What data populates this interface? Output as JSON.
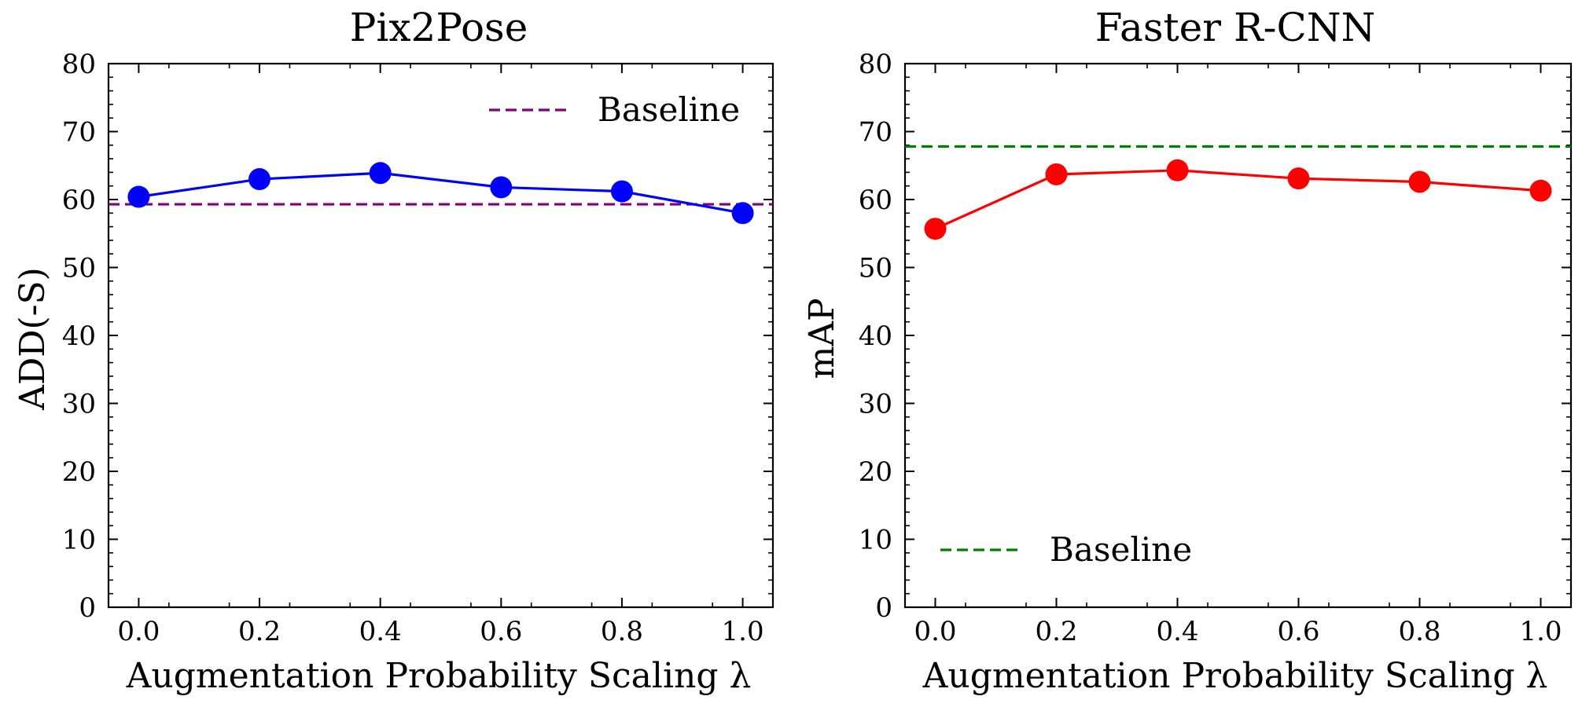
{
  "chart_data": [
    {
      "type": "line",
      "title": "Pix2Pose",
      "xlabel": "Augmentation Probability Scaling λ",
      "ylabel": "ADD(-S)",
      "xlim": [
        -0.05,
        1.05
      ],
      "ylim": [
        0,
        80
      ],
      "x_ticks": [
        "0.0",
        "0.2",
        "0.4",
        "0.6",
        "0.8",
        "1.0"
      ],
      "y_ticks": [
        "0",
        "10",
        "20",
        "30",
        "40",
        "50",
        "60",
        "70",
        "80"
      ],
      "x": [
        0.0,
        0.2,
        0.4,
        0.6,
        0.8,
        1.0
      ],
      "series": [
        {
          "values": [
            60.4,
            63.0,
            63.9,
            61.8,
            61.2,
            58.0
          ],
          "color": "#0000ff"
        }
      ],
      "baseline": {
        "label": "Baseline",
        "value": 59.3,
        "color": "#800080"
      },
      "legend": "top-right"
    },
    {
      "type": "line",
      "title": "Faster R-CNN",
      "xlabel": "Augmentation Probability Scaling λ",
      "ylabel": "mAP",
      "xlim": [
        -0.05,
        1.05
      ],
      "ylim": [
        0,
        80
      ],
      "x_ticks": [
        "0.0",
        "0.2",
        "0.4",
        "0.6",
        "0.8",
        "1.0"
      ],
      "y_ticks": [
        "0",
        "10",
        "20",
        "30",
        "40",
        "50",
        "60",
        "70",
        "80"
      ],
      "x": [
        0.0,
        0.2,
        0.4,
        0.6,
        0.8,
        1.0
      ],
      "series": [
        {
          "values": [
            55.7,
            63.7,
            64.3,
            63.1,
            62.6,
            61.3
          ],
          "color": "#ff0000"
        }
      ],
      "baseline": {
        "label": "Baseline",
        "value": 67.8,
        "color": "#008000"
      },
      "legend": "bottom-left"
    }
  ]
}
